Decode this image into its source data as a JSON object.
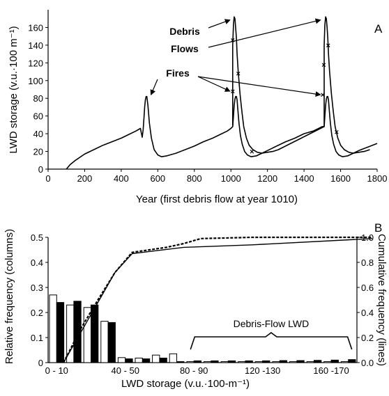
{
  "chart_data": [
    {
      "panel": "A",
      "type": "line",
      "xlabel": "Year (first debris flow at year 1010)",
      "ylabel": "LWD storage (v.u.·100 m⁻¹)",
      "xlim": [
        0,
        1800
      ],
      "ylim": [
        0,
        180
      ],
      "xticks": [
        0,
        200,
        400,
        600,
        800,
        1000,
        1200,
        1400,
        1600,
        1800
      ],
      "yticks": [
        0,
        20,
        40,
        60,
        80,
        100,
        120,
        140,
        160
      ],
      "series": [
        {
          "x": [
            100,
            120,
            150,
            200,
            250,
            300,
            350,
            400,
            450,
            480,
            505,
            515,
            520,
            525,
            528,
            532,
            536,
            540,
            546,
            554,
            565,
            580,
            600,
            620,
            650,
            700,
            750,
            800,
            850,
            900,
            950,
            980,
            1000,
            1010,
            1014,
            1018,
            1022,
            1026,
            1030,
            1034,
            1038,
            1044,
            1052,
            1062,
            1075,
            1090,
            1110,
            1140,
            1170,
            1200,
            1250,
            1300,
            1350,
            1400,
            1450,
            1480,
            1500,
            1510,
            1514,
            1518,
            1522,
            1526,
            1530,
            1534,
            1538,
            1544,
            1552,
            1562,
            1575,
            1590,
            1610,
            1640,
            1670,
            1700,
            1750,
            1800
          ],
          "y": [
            0,
            5,
            10,
            17,
            22,
            27,
            31,
            35,
            40,
            43,
            46,
            36,
            45,
            60,
            70,
            78,
            82,
            82,
            72,
            52,
            35,
            22,
            16,
            14,
            15,
            18,
            22,
            26,
            31,
            35,
            40,
            43,
            46,
            48,
            60,
            72,
            79,
            82,
            82,
            78,
            67,
            52,
            38,
            28,
            20,
            16,
            14,
            15,
            18,
            21,
            26,
            31,
            35,
            40,
            43,
            46,
            48,
            48,
            60,
            72,
            79,
            82,
            82,
            78,
            67,
            52,
            38,
            28,
            20,
            16,
            14,
            15,
            18,
            21,
            25,
            29
          ]
        },
        {
          "x": [
            1010,
            1010,
            1014,
            1018,
            1022,
            1026,
            1030,
            1034,
            1040,
            1050,
            1060,
            1070,
            1085,
            1100,
            1120,
            1145,
            1170,
            1200,
            1230,
            1260,
            1510,
            1510,
            1514,
            1518,
            1522,
            1526,
            1530,
            1534,
            1540,
            1550,
            1560,
            1570,
            1585,
            1600,
            1620,
            1645,
            1670,
            1700,
            1730,
            1760
          ],
          "y": [
            48,
            140,
            163,
            172,
            170,
            160,
            148,
            130,
            110,
            85,
            65,
            48,
            35,
            27,
            22,
            19,
            18,
            19,
            20,
            22,
            48,
            140,
            163,
            172,
            170,
            160,
            148,
            130,
            110,
            85,
            65,
            48,
            35,
            27,
            22,
            19,
            18,
            19,
            20,
            22
          ]
        }
      ],
      "markers": [
        {
          "x": 1010,
          "y": 146
        },
        {
          "x": 1010,
          "y": 88
        },
        {
          "x": 1040,
          "y": 108
        },
        {
          "x": 1115,
          "y": 20
        },
        {
          "x": 1508,
          "y": 118
        },
        {
          "x": 1532,
          "y": 140
        },
        {
          "x": 1502,
          "y": 84
        },
        {
          "x": 1578,
          "y": 42
        }
      ],
      "annotations": [
        {
          "text": "Debris",
          "targets": [
            [
              1010,
              170
            ],
            [
              1505,
              170
            ]
          ]
        },
        {
          "text": "Flows"
        },
        {
          "text": "Fires",
          "targets": [
            [
              540,
              84
            ],
            [
              1010,
              88
            ],
            [
              1505,
              84
            ]
          ]
        }
      ]
    },
    {
      "panel": "B",
      "type": "bar",
      "xlabel": "LWD storage (v.u.·100-m⁻¹)",
      "ylabel": "Relative frequency (columns)",
      "y2label": "Cumulative frequency (lines)",
      "ylim": [
        0,
        0.5
      ],
      "y2lim": [
        0,
        1.0
      ],
      "yticks": [
        0,
        0.1,
        0.2,
        0.3,
        0.4,
        0.5
      ],
      "y2ticks": [
        0.0,
        0.2,
        0.4,
        0.6,
        0.8,
        1.0
      ],
      "categories": [
        "0 - 10",
        "",
        "",
        "",
        "40 - 50",
        "",
        "",
        "",
        "80 - 90",
        "",
        "",
        "",
        "120 -130",
        "",
        "",
        "",
        "160 -170",
        ""
      ],
      "series": [
        {
          "style": "open",
          "values": [
            0.27,
            0.23,
            0.22,
            0.165,
            0.02,
            0.018,
            0.03,
            0.035,
            0.004,
            0.004,
            0.004,
            0.004,
            0.004,
            0.004,
            0.004,
            0.004,
            0.004,
            0.004
          ]
        },
        {
          "style": "filled",
          "values": [
            0.24,
            0.245,
            0.23,
            0.16,
            0.015,
            0.015,
            0.018,
            0.004,
            0.007,
            0.007,
            0.007,
            0.007,
            0.007,
            0.008,
            0.008,
            0.009,
            0.01,
            0.012
          ]
        }
      ],
      "cumulative": [
        {
          "style": "solid",
          "x": [
            0,
            1,
            2,
            3,
            4,
            7,
            11,
            18
          ],
          "y": [
            0.0,
            0.24,
            0.48,
            0.72,
            0.87,
            0.92,
            0.94,
            0.99
          ]
        },
        {
          "style": "dashed",
          "x": [
            0,
            1,
            2,
            3,
            4,
            5,
            6,
            7,
            8,
            11,
            18
          ],
          "y": [
            0.0,
            0.27,
            0.5,
            0.72,
            0.88,
            0.9,
            0.92,
            0.95,
            0.99,
            1.0,
            1.0
          ]
        }
      ],
      "annotation": {
        "text": "Debris-Flow LWD",
        "bracket": [
          8,
          17
        ]
      }
    }
  ]
}
